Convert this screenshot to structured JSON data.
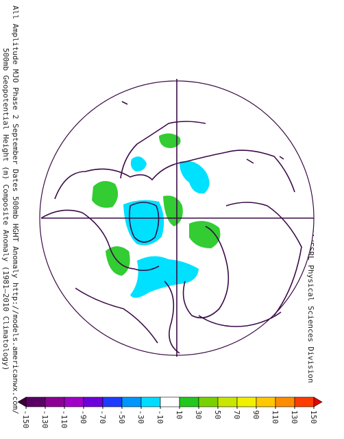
{
  "header": {
    "title_line1": "500mb Geopotential Height (m) Composite Anomaly (1981–2010 Climatology)",
    "title_line2": "All Amplitude MJO Phase 2 September Dates 500mb HGHT Anomaly http://models.americanwx.com/",
    "credit": "NOAA/ESRL Physical Sciences Division"
  },
  "colorbar": {
    "ticks": [
      -150,
      -130,
      -110,
      -90,
      -70,
      -50,
      -30,
      -10,
      10,
      30,
      50,
      70,
      90,
      110,
      130,
      150
    ],
    "colors": [
      "#5a0064",
      "#8c0096",
      "#a000c8",
      "#6e00dc",
      "#1e3cff",
      "#0096ff",
      "#00dcff",
      "#ffffff",
      "#22c81e",
      "#78d200",
      "#c8e600",
      "#f0f000",
      "#ffc800",
      "#ff8c00",
      "#ff3c00"
    ],
    "under_color": "#3c003c",
    "over_color": "#e60000"
  }
}
